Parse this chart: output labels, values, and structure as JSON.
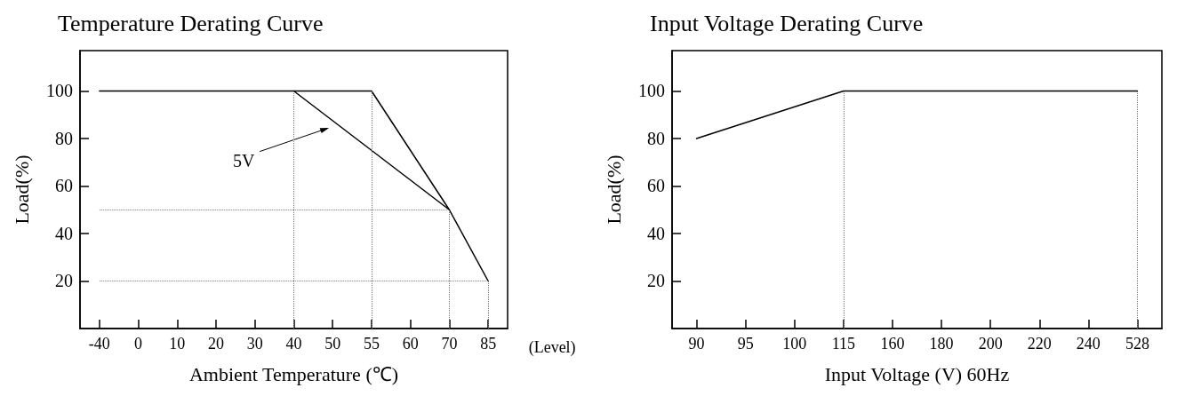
{
  "chart_data": [
    {
      "type": "line",
      "title": "Temperature Derating Curve",
      "xlabel": "Ambient Temperature (℃)",
      "ylabel": "Load(%)",
      "categories": [
        "-40",
        "0",
        "10",
        "20",
        "30",
        "40",
        "50",
        "55",
        "60",
        "70",
        "85"
      ],
      "series": [
        {
          "color": "#000000",
          "values": [
            100,
            null,
            null,
            null,
            null,
            null,
            null,
            100,
            null,
            50,
            20
          ]
        },
        {
          "name": "5V",
          "color": "#000000",
          "values": [
            null,
            null,
            null,
            null,
            null,
            100,
            null,
            null,
            null,
            50,
            null
          ]
        }
      ],
      "ylim": [
        0,
        117
      ],
      "yticks": [
        20,
        40,
        60,
        80,
        100
      ],
      "grid": false,
      "legend": false,
      "marker": "none",
      "line_style": "solid",
      "ref_lines": [
        {
          "axis": "x",
          "value": "40",
          "color": "#808080",
          "line_style": "dotted"
        },
        {
          "axis": "x",
          "value": "55",
          "color": "#808080",
          "line_style": "dotted"
        },
        {
          "axis": "x",
          "value": "70",
          "color": "#808080",
          "line_style": "dotted"
        },
        {
          "axis": "x",
          "value": "85",
          "color": "#808080",
          "line_style": "dotted"
        },
        {
          "axis": "y",
          "value": 50,
          "color": "#808080",
          "line_style": "dotted"
        },
        {
          "axis": "y",
          "value": 20,
          "color": "#808080",
          "line_style": "dotted"
        }
      ],
      "annotations": [
        "(Level)"
      ]
    },
    {
      "type": "line",
      "title": "Input Voltage Derating Curve",
      "xlabel": "Input Voltage (V) 60Hz",
      "ylabel": "Load(%)",
      "categories": [
        "90",
        "95",
        "100",
        "115",
        "160",
        "180",
        "200",
        "220",
        "240",
        "528"
      ],
      "series": [
        {
          "color": "#000000",
          "values": [
            80,
            null,
            null,
            100,
            null,
            null,
            null,
            null,
            null,
            100
          ]
        }
      ],
      "ylim": [
        0,
        117
      ],
      "yticks": [
        20,
        40,
        60,
        80,
        100
      ],
      "grid": false,
      "legend": false,
      "marker": "none",
      "line_style": "solid",
      "ref_lines": [
        {
          "axis": "x",
          "value": "115",
          "color": "#808080",
          "line_style": "dotted"
        },
        {
          "axis": "x",
          "value": "528",
          "color": "#808080",
          "line_style": "dotted"
        }
      ]
    }
  ]
}
